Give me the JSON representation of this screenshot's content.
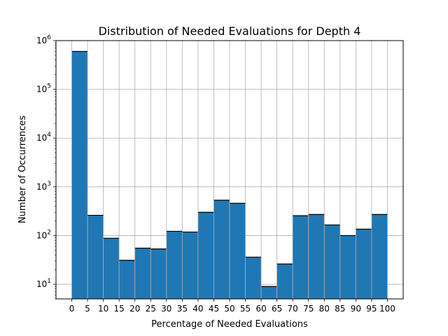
{
  "chart_data": {
    "type": "bar",
    "title": "Distribution of Needed Evaluations for Depth 4",
    "xlabel": "Percentage of Needed Evaluations",
    "ylabel": "Number of Occurrences",
    "y_scale": "log",
    "xlim": [
      -5,
      105
    ],
    "ylim": [
      5,
      1000000
    ],
    "x_ticks": [
      0,
      5,
      10,
      15,
      20,
      25,
      30,
      35,
      40,
      45,
      50,
      55,
      60,
      65,
      70,
      75,
      80,
      85,
      90,
      95,
      100
    ],
    "x_tick_labels": [
      "0",
      "5",
      "10",
      "15",
      "20",
      "25",
      "30",
      "35",
      "40",
      "45",
      "50",
      "55",
      "60",
      "65",
      "70",
      "75",
      "80",
      "85",
      "90",
      "95",
      "100"
    ],
    "y_ticks": [
      10,
      100,
      1000,
      10000,
      100000,
      1000000
    ],
    "y_tick_labels": [
      {
        "base": "10",
        "exp": "1"
      },
      {
        "base": "10",
        "exp": "2"
      },
      {
        "base": "10",
        "exp": "3"
      },
      {
        "base": "10",
        "exp": "4"
      },
      {
        "base": "10",
        "exp": "5"
      },
      {
        "base": "10",
        "exp": "6"
      }
    ],
    "bin_edges": [
      0,
      5,
      10,
      15,
      20,
      25,
      30,
      35,
      40,
      45,
      50,
      55,
      60,
      65,
      70,
      75,
      80,
      85,
      90,
      95,
      100
    ],
    "values": [
      600000,
      260,
      88,
      31,
      55,
      53,
      122,
      118,
      300,
      530,
      460,
      36,
      9,
      26,
      255,
      270,
      165,
      100,
      135,
      270
    ],
    "grid": true,
    "colors": {
      "bar_fill": "#1f77b4",
      "bar_edge": "#000000",
      "grid": "#b0b0b0",
      "axes": "#000000"
    }
  }
}
